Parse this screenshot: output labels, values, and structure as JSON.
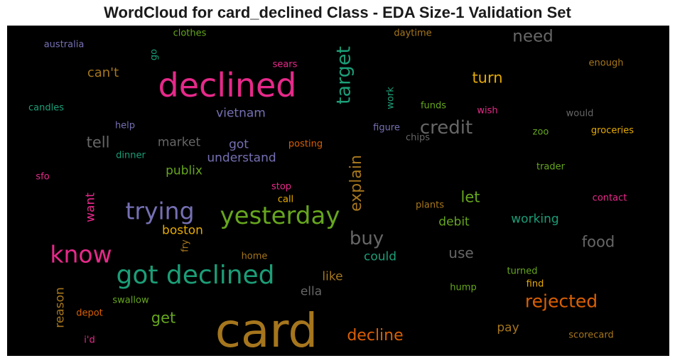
{
  "chart_title": "WordCloud for card_declined Class - EDA Size-1 Validation Set",
  "chart_data": {
    "type": "wordcloud",
    "title": "WordCloud for card_declined Class - EDA Size-1 Validation Set",
    "background": "#000000",
    "words": [
      {
        "text": "card",
        "color": "#a6761d"
      },
      {
        "text": "declined",
        "color": "#e7298a"
      },
      {
        "text": "got declined",
        "color": "#1b9e77"
      },
      {
        "text": "yesterday",
        "color": "#66a61e"
      },
      {
        "text": "trying",
        "color": "#7570b3"
      },
      {
        "text": "know",
        "color": "#e7298a"
      },
      {
        "text": "target",
        "color": "#1b9e77"
      },
      {
        "text": "credit",
        "color": "#666666"
      },
      {
        "text": "rejected",
        "color": "#d95f02"
      },
      {
        "text": "explain",
        "color": "#a6761d"
      },
      {
        "text": "buy",
        "color": "#666666"
      },
      {
        "text": "decline",
        "color": "#d95f02"
      },
      {
        "text": "need",
        "color": "#666666"
      },
      {
        "text": "turn",
        "color": "#e6ab02"
      },
      {
        "text": "food",
        "color": "#666666"
      },
      {
        "text": "let",
        "color": "#66a61e"
      },
      {
        "text": "get",
        "color": "#66a61e"
      },
      {
        "text": "tell",
        "color": "#666666"
      },
      {
        "text": "use",
        "color": "#666666"
      },
      {
        "text": "can't",
        "color": "#a6761d"
      },
      {
        "text": "want",
        "color": "#e7298a"
      },
      {
        "text": "vietnam",
        "color": "#7570b3"
      },
      {
        "text": "understand",
        "color": "#7570b3"
      },
      {
        "text": "got",
        "color": "#7570b3"
      },
      {
        "text": "market",
        "color": "#666666"
      },
      {
        "text": "publix",
        "color": "#66a61e"
      },
      {
        "text": "boston",
        "color": "#e6ab02"
      },
      {
        "text": "working",
        "color": "#1b9e77"
      },
      {
        "text": "debit",
        "color": "#66a61e"
      },
      {
        "text": "could",
        "color": "#1b9e77"
      },
      {
        "text": "reason",
        "color": "#a6761d"
      },
      {
        "text": "ella",
        "color": "#666666"
      },
      {
        "text": "like",
        "color": "#a6761d"
      },
      {
        "text": "pay",
        "color": "#a6761d"
      },
      {
        "text": "australia",
        "color": "#7570b3"
      },
      {
        "text": "clothes",
        "color": "#66a61e"
      },
      {
        "text": "daytime",
        "color": "#a6761d"
      },
      {
        "text": "enough",
        "color": "#a6761d"
      },
      {
        "text": "sears",
        "color": "#e7298a"
      },
      {
        "text": "go",
        "color": "#1b9e77"
      },
      {
        "text": "candles",
        "color": "#1b9e77"
      },
      {
        "text": "work",
        "color": "#1b9e77"
      },
      {
        "text": "funds",
        "color": "#66a61e"
      },
      {
        "text": "wish",
        "color": "#e7298a"
      },
      {
        "text": "would",
        "color": "#666666"
      },
      {
        "text": "help",
        "color": "#7570b3"
      },
      {
        "text": "figure",
        "color": "#7570b3"
      },
      {
        "text": "chips",
        "color": "#666666"
      },
      {
        "text": "zoo",
        "color": "#66a61e"
      },
      {
        "text": "groceries",
        "color": "#e6ab02"
      },
      {
        "text": "dinner",
        "color": "#1b9e77"
      },
      {
        "text": "posting",
        "color": "#d95f02"
      },
      {
        "text": "trader",
        "color": "#66a61e"
      },
      {
        "text": "sfo",
        "color": "#e7298a"
      },
      {
        "text": "stop",
        "color": "#e7298a"
      },
      {
        "text": "call",
        "color": "#e6ab02"
      },
      {
        "text": "plants",
        "color": "#a6761d"
      },
      {
        "text": "contact",
        "color": "#e7298a"
      },
      {
        "text": "fry",
        "color": "#a6761d"
      },
      {
        "text": "home",
        "color": "#a6761d"
      },
      {
        "text": "turned",
        "color": "#66a61e"
      },
      {
        "text": "find",
        "color": "#e6ab02"
      },
      {
        "text": "hump",
        "color": "#66a61e"
      },
      {
        "text": "swallow",
        "color": "#66a61e"
      },
      {
        "text": "depot",
        "color": "#d95f02"
      },
      {
        "text": "i'd",
        "color": "#e7298a"
      },
      {
        "text": "scorecard",
        "color": "#a6761d"
      }
    ]
  }
}
